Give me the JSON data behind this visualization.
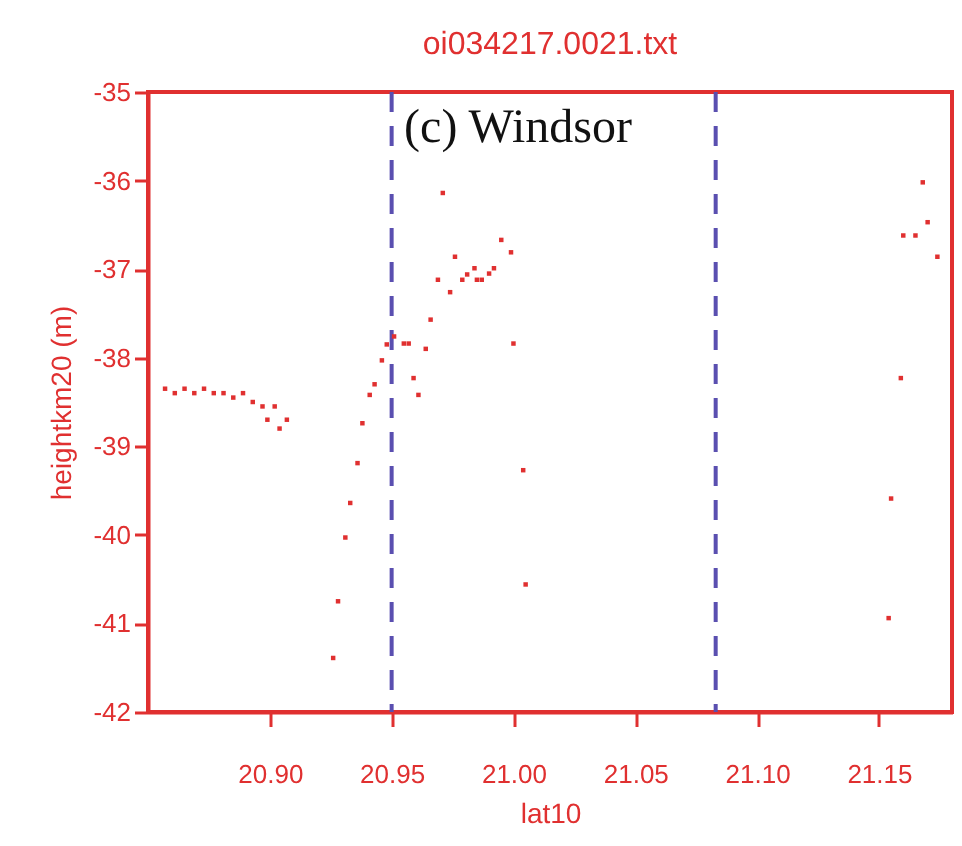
{
  "chart_data": {
    "type": "scatter",
    "title": "oi034217.0021.txt",
    "xlabel": "lat10",
    "ylabel": "heightkm20 (m)",
    "annotations": [
      "(c) Windsor"
    ],
    "xlim": [
      20.85,
      21.18
    ],
    "xticks": [
      {
        "value": 20.9,
        "label": "20.90"
      },
      {
        "value": 20.95,
        "label": "20.95"
      },
      {
        "value": 21.0,
        "label": "21.00"
      },
      {
        "value": 21.05,
        "label": "21.05"
      },
      {
        "value": 21.1,
        "label": "21.10"
      },
      {
        "value": 21.15,
        "label": "21.15"
      }
    ],
    "ylim": [
      -42,
      -35
    ],
    "yticks": [
      -42,
      -41,
      -40,
      -39,
      -38,
      -37,
      -36,
      -35
    ],
    "grid": false,
    "marker": "square",
    "ref_lines": [
      {
        "axis": "x",
        "value": 20.95,
        "color": "#5a4fb0",
        "line_style": "dashed"
      },
      {
        "axis": "x",
        "value": 21.083,
        "color": "#5a4fb0",
        "line_style": "dashed"
      }
    ],
    "series": [
      {
        "color": "#e03030",
        "x": [
          20.857,
          20.861,
          20.865,
          20.869,
          20.873,
          20.877,
          20.881,
          20.885,
          20.889,
          20.893,
          20.897,
          20.899,
          20.902,
          20.904,
          20.907,
          20.926,
          20.928,
          20.931,
          20.933,
          20.936,
          20.938,
          20.941,
          20.943,
          20.946,
          20.948,
          20.951,
          20.955,
          20.957,
          20.959,
          20.961,
          20.964,
          20.966,
          20.969,
          20.971,
          20.974,
          20.976,
          20.979,
          20.981,
          20.984,
          20.985,
          20.987,
          20.99,
          20.992,
          20.995,
          20.999,
          21.0,
          21.004,
          21.005,
          21.154,
          21.155,
          21.159,
          21.16,
          21.165,
          21.168,
          21.17,
          21.174
        ],
        "values": [
          -38.35,
          -38.4,
          -38.35,
          -38.4,
          -38.35,
          -38.4,
          -38.4,
          -38.45,
          -38.4,
          -38.5,
          -38.55,
          -38.7,
          -38.55,
          -38.8,
          -38.7,
          -41.39,
          -40.75,
          -40.03,
          -39.64,
          -39.19,
          -38.74,
          -38.42,
          -38.3,
          -38.03,
          -37.85,
          -37.76,
          -37.84,
          -37.84,
          -38.23,
          -38.42,
          -37.9,
          -37.57,
          -37.12,
          -36.14,
          -37.26,
          -36.86,
          -37.12,
          -37.06,
          -36.99,
          -37.12,
          -37.12,
          -37.05,
          -36.99,
          -36.67,
          -36.81,
          -37.84,
          -39.27,
          -40.56,
          -40.94,
          -39.59,
          -38.23,
          -36.62,
          -36.62,
          -36.02,
          -36.47,
          -36.86
        ]
      }
    ]
  }
}
